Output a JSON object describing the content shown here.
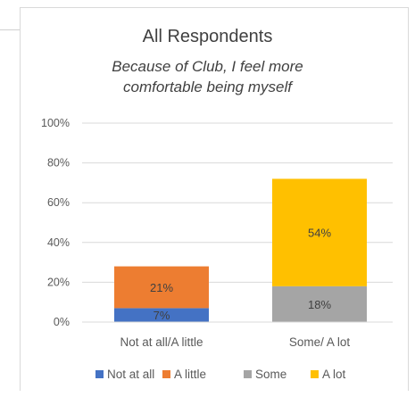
{
  "chart_data": {
    "type": "bar",
    "stacked": true,
    "title": "All Respondents",
    "subtitle_lines": [
      "Because of Club, I feel more",
      "comfortable being myself"
    ],
    "categories": [
      "Not at all/A little",
      "Some/ A lot"
    ],
    "series": [
      {
        "name": "Not at all",
        "color": "#4472C4",
        "values": [
          7,
          0
        ],
        "labels": [
          "7%",
          ""
        ]
      },
      {
        "name": "A little",
        "color": "#ED7D31",
        "values": [
          21,
          0
        ],
        "labels": [
          "21%",
          ""
        ]
      },
      {
        "name": "Some",
        "color": "#A5A5A5",
        "values": [
          0,
          18
        ],
        "labels": [
          "",
          "18%"
        ]
      },
      {
        "name": "A lot",
        "color": "#FFC000",
        "values": [
          0,
          54
        ],
        "labels": [
          "",
          "54%"
        ]
      }
    ],
    "y_ticks": [
      "0%",
      "20%",
      "40%",
      "60%",
      "80%",
      "100%"
    ],
    "ylim": [
      0,
      100
    ],
    "grid": true,
    "legend_position": "bottom"
  }
}
